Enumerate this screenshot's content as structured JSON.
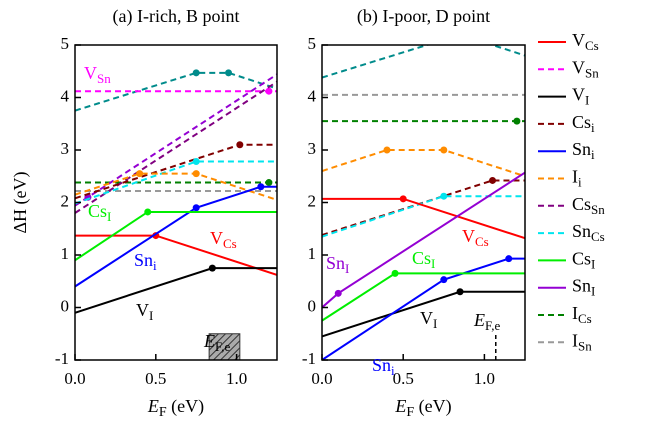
{
  "legend": [
    {
      "name": "V",
      "sub": "Cs",
      "color": "#ff0000",
      "dashed": false
    },
    {
      "name": "V",
      "sub": "Sn",
      "color": "#ff00ff",
      "dashed": true
    },
    {
      "name": "V",
      "sub": "I",
      "color": "#000000",
      "dashed": false
    },
    {
      "name": "Cs",
      "sub": "i",
      "color": "#800000",
      "dashed": true
    },
    {
      "name": "Sn",
      "sub": "i",
      "color": "#0000ff",
      "dashed": false
    },
    {
      "name": "I",
      "sub": "i",
      "color": "#ff8c00",
      "dashed": true
    },
    {
      "name": "Cs",
      "sub": "Sn",
      "color": "#800080",
      "dashed": true
    },
    {
      "name": "Sn",
      "sub": "Cs",
      "color": "#00e5ee",
      "dashed": true
    },
    {
      "name": "Cs",
      "sub": "I",
      "color": "#00ee00",
      "dashed": false
    },
    {
      "name": "Sn",
      "sub": "I",
      "color": "#9400d3",
      "dashed": false
    },
    {
      "name": "I",
      "sub": "Cs",
      "color": "#008000",
      "dashed": true
    },
    {
      "name": "I",
      "sub": "Sn",
      "color": "#999999",
      "dashed": true
    }
  ],
  "chart_data": [
    {
      "type": "line",
      "title": "(a) I-rich, B point",
      "ylabel": "ΔH (eV)",
      "xlabel": {
        "base": "E",
        "sub": "F",
        "unit": " (eV)"
      },
      "xlim": [
        0,
        1.25
      ],
      "ylim": [
        -1,
        5
      ],
      "xticks": [
        {
          "value": 0,
          "label": "0.0"
        },
        {
          "value": 0.5,
          "label": "0.5"
        },
        {
          "value": 1,
          "label": "1.0"
        }
      ],
      "yticks": [
        -1,
        0,
        1,
        2,
        3,
        4,
        5
      ],
      "efe_range": [
        0.83,
        1.02
      ],
      "series": [
        {
          "color": "#008b8b",
          "dashed": true,
          "x": [
            0,
            0.75,
            0.95,
            1.25
          ],
          "values": [
            3.75,
            4.47,
            4.47,
            4.17
          ],
          "dots": [
            1,
            2
          ]
        },
        {
          "color": "#999999",
          "dashed": true,
          "x": [
            0,
            1.25
          ],
          "values": [
            2.22,
            2.22
          ],
          "dots": []
        },
        {
          "color": "#008000",
          "dashed": true,
          "x": [
            0,
            1.2,
            1.25
          ],
          "values": [
            2.38,
            2.38,
            2.38
          ],
          "dots": [
            1
          ]
        },
        {
          "color": "#ff00ff",
          "dashed": true,
          "x": [
            0,
            1.2,
            1.25
          ],
          "values": [
            4.12,
            4.12,
            4.12
          ],
          "dots": [
            1
          ]
        },
        {
          "color": "#800080",
          "dashed": true,
          "x": [
            0,
            1.25
          ],
          "values": [
            1.8,
            4.3
          ],
          "dots": []
        },
        {
          "color": "#9400d3",
          "dashed": true,
          "x": [
            0,
            0.08,
            1.25
          ],
          "values": [
            1.94,
            2.1,
            4.44
          ],
          "dots": [
            1
          ]
        },
        {
          "color": "#800000",
          "dashed": true,
          "x": [
            0,
            1.02,
            1.25
          ],
          "values": [
            2.08,
            3.1,
            3.1
          ],
          "dots": [
            1
          ]
        },
        {
          "color": "#00e5ee",
          "dashed": true,
          "x": [
            0,
            0.75,
            1.25
          ],
          "values": [
            1.98,
            2.78,
            2.78
          ],
          "dots": [
            1
          ]
        },
        {
          "color": "#ff8c00",
          "dashed": true,
          "x": [
            0,
            0.4,
            0.75,
            1.25
          ],
          "values": [
            2.15,
            2.55,
            2.55,
            2.05
          ],
          "dots": [
            1,
            2
          ]
        },
        {
          "color": "#ff0000",
          "dashed": false,
          "x": [
            0,
            0.5,
            1.25
          ],
          "values": [
            1.37,
            1.37,
            0.62
          ],
          "dots": [
            1
          ]
        },
        {
          "color": "#000000",
          "dashed": false,
          "x": [
            0,
            0.85,
            1.25
          ],
          "values": [
            -0.1,
            0.75,
            0.75
          ],
          "dots": [
            1
          ]
        },
        {
          "color": "#0000ff",
          "dashed": false,
          "x": [
            0,
            0.75,
            1.15,
            1.25
          ],
          "values": [
            0.4,
            1.9,
            2.3,
            2.3
          ],
          "dots": [
            1,
            2
          ]
        },
        {
          "color": "#00ee00",
          "dashed": false,
          "x": [
            0,
            0.45,
            1.25
          ],
          "values": [
            0.9,
            1.82,
            1.82
          ],
          "dots": [
            1
          ]
        }
      ],
      "annotations": [
        {
          "base": "V",
          "sub": "Sn",
          "color": "#ff00ff"
        },
        {
          "base": "Cs",
          "sub": "I",
          "color": "#00ee00"
        },
        {
          "base": "V",
          "sub": "Cs",
          "color": "#ff0000"
        },
        {
          "base": "Sn",
          "sub": "i",
          "color": "#0000ff"
        },
        {
          "base": "V",
          "sub": "I",
          "color": "#000000"
        },
        {
          "base": "E",
          "sub": "F,e",
          "color": "#000000"
        }
      ]
    },
    {
      "type": "line",
      "title": "(b) I-poor, D point",
      "xlabel": {
        "base": "E",
        "sub": "F",
        "unit": " (eV)"
      },
      "xlim": [
        0,
        1.25
      ],
      "ylim": [
        -1,
        5
      ],
      "xticks": [
        {
          "value": 0,
          "label": "0.0"
        },
        {
          "value": 0.5,
          "label": "0.5"
        },
        {
          "value": 1,
          "label": "1.0"
        }
      ],
      "yticks": [
        -1,
        0,
        1,
        2,
        3,
        4,
        5
      ],
      "efe_range": [
        1.07,
        1.07
      ],
      "series": [
        {
          "color": "#008b8b",
          "dashed": true,
          "x": [
            0,
            0.75,
            0.95,
            1.25
          ],
          "values": [
            4.38,
            5.1,
            5.1,
            4.8
          ],
          "dots": []
        },
        {
          "color": "#999999",
          "dashed": true,
          "x": [
            0,
            1.25
          ],
          "values": [
            4.05,
            4.05
          ],
          "dots": []
        },
        {
          "color": "#008000",
          "dashed": true,
          "x": [
            0,
            1.2,
            1.25
          ],
          "values": [
            3.55,
            3.55,
            3.55
          ],
          "dots": [
            1
          ]
        },
        {
          "color": "#800000",
          "dashed": true,
          "x": [
            0,
            1.05,
            1.25
          ],
          "values": [
            1.38,
            2.42,
            2.42
          ],
          "dots": [
            1
          ]
        },
        {
          "color": "#00e5ee",
          "dashed": true,
          "x": [
            0,
            0.75,
            1.25
          ],
          "values": [
            1.35,
            2.12,
            2.12
          ],
          "dots": [
            1
          ]
        },
        {
          "color": "#ff8c00",
          "dashed": true,
          "x": [
            0,
            0.4,
            0.75,
            1.25
          ],
          "values": [
            2.6,
            3.0,
            3.0,
            2.5
          ],
          "dots": [
            1,
            2
          ]
        },
        {
          "color": "#ff0000",
          "dashed": false,
          "x": [
            0,
            0.5,
            1.25
          ],
          "values": [
            2.07,
            2.07,
            1.32
          ],
          "dots": [
            1
          ]
        },
        {
          "color": "#9400d3",
          "dashed": false,
          "x": [
            0,
            0.1,
            1.25
          ],
          "values": [
            0,
            0.27,
            2.57
          ],
          "dots": [
            1
          ]
        },
        {
          "color": "#000000",
          "dashed": false,
          "x": [
            0,
            0.85,
            1.25
          ],
          "values": [
            -0.55,
            0.3,
            0.3
          ],
          "dots": [
            1
          ]
        },
        {
          "color": "#0000ff",
          "dashed": false,
          "x": [
            0,
            0.75,
            1.15,
            1.25
          ],
          "values": [
            -1,
            0.53,
            0.93,
            0.93
          ],
          "dots": [
            1,
            2
          ]
        },
        {
          "color": "#00ee00",
          "dashed": false,
          "x": [
            0,
            0.45,
            1.25
          ],
          "values": [
            -0.25,
            0.65,
            0.65
          ],
          "dots": [
            1
          ]
        }
      ],
      "annotations": [
        {
          "base": "Sn",
          "sub": "I",
          "color": "#9400d3"
        },
        {
          "base": "Cs",
          "sub": "I",
          "color": "#00ee00"
        },
        {
          "base": "V",
          "sub": "Cs",
          "color": "#ff0000"
        },
        {
          "base": "Sn",
          "sub": "i",
          "color": "#0000ff"
        },
        {
          "base": "V",
          "sub": "I",
          "color": "#000000"
        },
        {
          "base": "E",
          "sub": "F,e",
          "color": "#000000"
        }
      ]
    }
  ]
}
